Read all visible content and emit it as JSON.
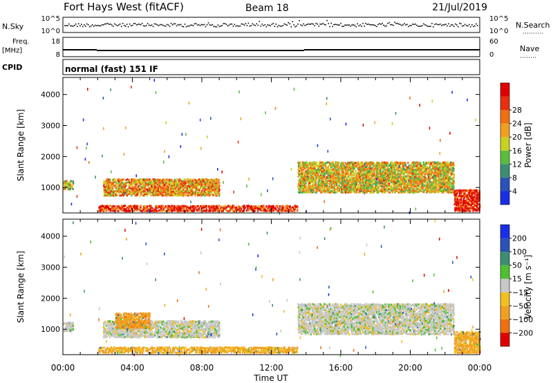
{
  "header": {
    "title": "Fort Hays West (fitACF)",
    "beam": "Beam 18",
    "date": "21/Jul/2019"
  },
  "noise_panel": {
    "left_label": "N.Sky",
    "right_label": "N.Search",
    "left_ticks": [
      "10^5",
      "10^0"
    ],
    "right_ticks": [
      "10^5",
      "10^0"
    ]
  },
  "freq_panel": {
    "left_label_1": "Freq.",
    "left_label_2": "[MHz]",
    "right_label": "Nave",
    "left_ticks": [
      "18",
      "8"
    ],
    "right_ticks": [
      "60",
      "0"
    ]
  },
  "cpid": {
    "label": "CPID",
    "text": "normal (fast) 151 IF"
  },
  "x_axis": {
    "label": "Time UT",
    "ticks": [
      "00:00",
      "04:00",
      "08:00",
      "12:00",
      "16:00",
      "20:00",
      "00:00"
    ]
  },
  "chart_data": [
    {
      "type": "heatmap",
      "name": "power",
      "ylabel": "Slant Range [km]",
      "y_ticks": [
        1000,
        2000,
        3000,
        4000
      ],
      "ylim": [
        180,
        4550
      ],
      "xlim_hours": [
        0,
        24
      ],
      "colorbar": {
        "label": "Power [dB]",
        "ticks": [
          "4",
          "8",
          "12",
          "16",
          "20",
          "24",
          "28"
        ],
        "colors": [
          "#1a2ee8",
          "#2a52b8",
          "#3e8e72",
          "#5cbc40",
          "#c8d020",
          "#f0a020",
          "#f07010",
          "#e83010",
          "#e00000"
        ]
      },
      "features": [
        {
          "t0": 0.0,
          "t1": 0.6,
          "r0": 900,
          "r1": 1200,
          "level": 0.5
        },
        {
          "t0": 2.3,
          "t1": 9.0,
          "r0": 700,
          "r1": 1250,
          "level": 0.65
        },
        {
          "t0": 2.0,
          "t1": 13.5,
          "r0": 200,
          "r1": 400,
          "level": 0.85
        },
        {
          "t0": 13.5,
          "t1": 22.5,
          "r0": 800,
          "r1": 1800,
          "level": 0.55
        },
        {
          "t0": 22.5,
          "t1": 24.0,
          "r0": 200,
          "r1": 900,
          "level": 0.9
        }
      ]
    },
    {
      "type": "heatmap",
      "name": "velocity",
      "ylabel": "Slant Range [km]",
      "y_ticks": [
        1000,
        2000,
        3000,
        4000
      ],
      "ylim": [
        180,
        4550
      ],
      "xlim_hours": [
        0,
        24
      ],
      "colorbar": {
        "label": "Velocity [m s⁻¹]",
        "ticks": [
          "200",
          "100",
          "50",
          "15",
          "-15",
          "-50",
          "-100",
          "-200"
        ],
        "colors": [
          "#1a2ee8",
          "#2a52b8",
          "#3e8e72",
          "#50c030",
          "#c8c8c8",
          "#f0c020",
          "#f0a020",
          "#f07010",
          "#e00000"
        ]
      },
      "features": [
        {
          "t0": 0.0,
          "t1": 0.6,
          "r0": 900,
          "r1": 1200,
          "v": 0
        },
        {
          "t0": 2.3,
          "t1": 9.0,
          "r0": 700,
          "r1": 1250,
          "v": 0
        },
        {
          "t0": 3.0,
          "t1": 5.0,
          "r0": 1000,
          "r1": 1500,
          "v": -60
        },
        {
          "t0": 2.0,
          "t1": 13.5,
          "r0": 200,
          "r1": 400,
          "v": -40
        },
        {
          "t0": 13.5,
          "t1": 22.5,
          "r0": 800,
          "r1": 1800,
          "v": 0
        },
        {
          "t0": 22.5,
          "t1": 24.0,
          "r0": 200,
          "r1": 900,
          "v": -40
        }
      ]
    }
  ]
}
